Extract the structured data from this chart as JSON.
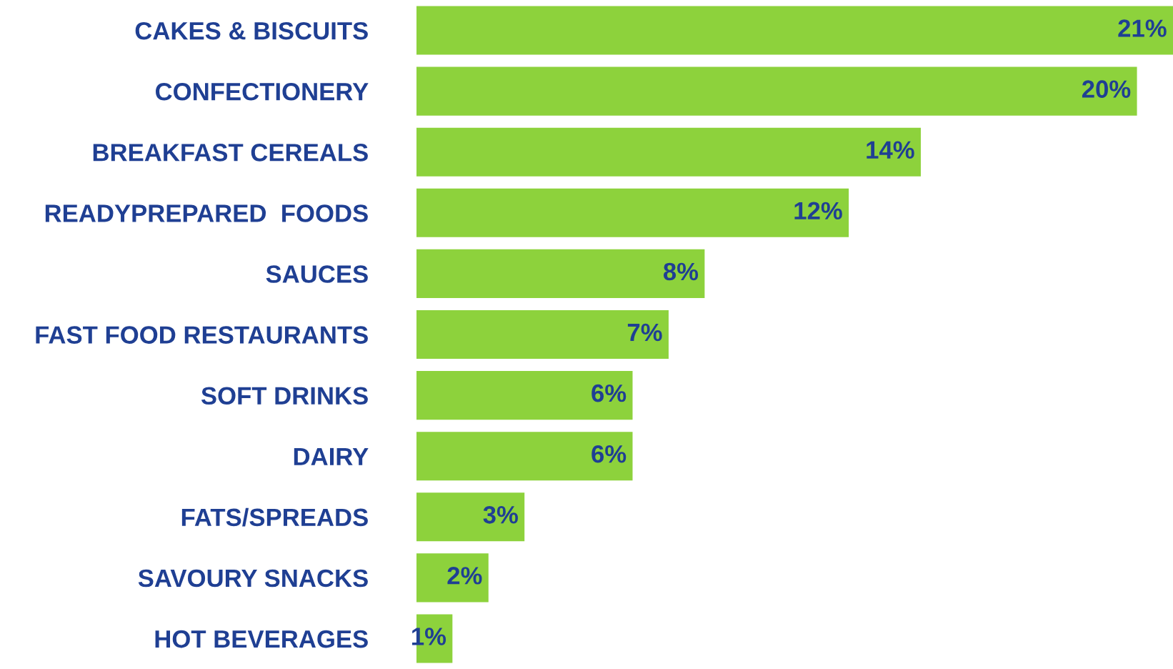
{
  "chart_data": {
    "type": "bar",
    "orientation": "horizontal",
    "categories": [
      "CAKES & BISCUITS",
      "CONFECTIONERY",
      "BREAKFAST CEREALS",
      "READYPREPARED  FOODS",
      "SAUCES",
      "FAST FOOD RESTAURANTS",
      "SOFT DRINKS",
      "DAIRY",
      "FATS/SPREADS",
      "SAVOURY SNACKS",
      "HOT BEVERAGES"
    ],
    "values": [
      21,
      20,
      14,
      12,
      8,
      7,
      6,
      6,
      3,
      2,
      1
    ],
    "value_labels": [
      "21%",
      "20%",
      "14%",
      "12%",
      "8%",
      "7%",
      "6%",
      "6%",
      "3%",
      "2%",
      "1%"
    ],
    "color": "#8dd23c",
    "grid": false,
    "legend": false
  }
}
